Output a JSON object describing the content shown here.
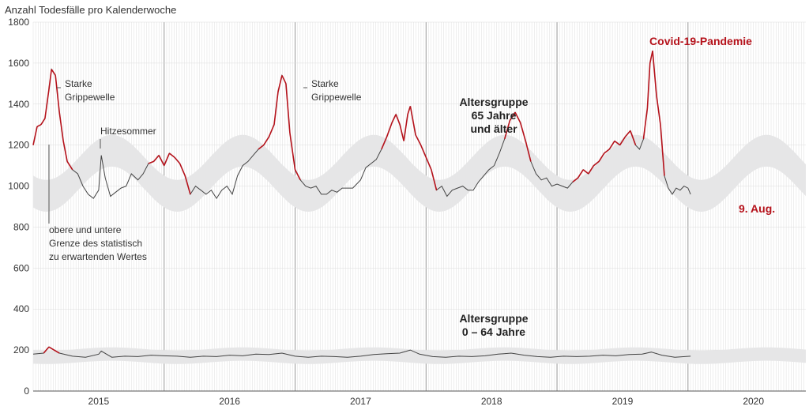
{
  "chart_data": {
    "type": "line",
    "title": "",
    "ylabel": "Anzahl Todesfälle pro Kalenderwoche",
    "xlabel": "",
    "ylim": [
      0,
      1800
    ],
    "yticks": [
      0,
      200,
      400,
      600,
      800,
      1000,
      1200,
      1400,
      1600,
      1800
    ],
    "xlim_year": [
      2014.5,
      2020.4
    ],
    "year_labels": [
      "2015",
      "2016",
      "2017",
      "2018",
      "2019",
      "2020"
    ],
    "grid": true,
    "colors": {
      "normal": "#444444",
      "excess": "#b5121b",
      "band": "#e6e6e7",
      "grid": "#e4e4e4",
      "season_line": "#999999"
    },
    "series": [
      {
        "name": "Altersgruppe 65 Jahre und älter",
        "points": [
          [
            2014.5,
            1200
          ],
          [
            2014.53,
            1290
          ],
          [
            2014.56,
            1300
          ],
          [
            2014.59,
            1330
          ],
          [
            2014.62,
            1470
          ],
          [
            2014.64,
            1570
          ],
          [
            2014.67,
            1540
          ],
          [
            2014.7,
            1360
          ],
          [
            2014.73,
            1220
          ],
          [
            2014.76,
            1120
          ],
          [
            2014.8,
            1080
          ],
          [
            2014.84,
            1060
          ],
          [
            2014.88,
            1000
          ],
          [
            2014.92,
            960
          ],
          [
            2014.96,
            940
          ],
          [
            2015.0,
            980
          ],
          [
            2015.02,
            1150
          ],
          [
            2015.05,
            1040
          ],
          [
            2015.09,
            950
          ],
          [
            2015.13,
            970
          ],
          [
            2015.17,
            990
          ],
          [
            2015.21,
            1000
          ],
          [
            2015.25,
            1060
          ],
          [
            2015.3,
            1030
          ],
          [
            2015.34,
            1060
          ],
          [
            2015.38,
            1110
          ],
          [
            2015.42,
            1120
          ],
          [
            2015.46,
            1150
          ],
          [
            2015.5,
            1100
          ],
          [
            2015.54,
            1160
          ],
          [
            2015.58,
            1140
          ],
          [
            2015.62,
            1110
          ],
          [
            2015.66,
            1050
          ],
          [
            2015.7,
            960
          ],
          [
            2015.74,
            1000
          ],
          [
            2015.78,
            980
          ],
          [
            2015.82,
            960
          ],
          [
            2015.86,
            980
          ],
          [
            2015.9,
            940
          ],
          [
            2015.94,
            980
          ],
          [
            2015.98,
            1000
          ],
          [
            2016.02,
            960
          ],
          [
            2016.06,
            1050
          ],
          [
            2016.1,
            1100
          ],
          [
            2016.14,
            1120
          ],
          [
            2016.18,
            1150
          ],
          [
            2016.22,
            1180
          ],
          [
            2016.26,
            1200
          ],
          [
            2016.3,
            1240
          ],
          [
            2016.34,
            1300
          ],
          [
            2016.37,
            1460
          ],
          [
            2016.4,
            1540
          ],
          [
            2016.43,
            1500
          ],
          [
            2016.46,
            1260
          ],
          [
            2016.5,
            1080
          ],
          [
            2016.54,
            1030
          ],
          [
            2016.58,
            1000
          ],
          [
            2016.62,
            990
          ],
          [
            2016.66,
            1000
          ],
          [
            2016.7,
            960
          ],
          [
            2016.74,
            960
          ],
          [
            2016.78,
            980
          ],
          [
            2016.82,
            970
          ],
          [
            2016.86,
            990
          ],
          [
            2016.9,
            990
          ],
          [
            2016.94,
            990
          ],
          [
            2017.0,
            1030
          ],
          [
            2017.04,
            1090
          ],
          [
            2017.08,
            1110
          ],
          [
            2017.12,
            1130
          ],
          [
            2017.16,
            1180
          ],
          [
            2017.2,
            1240
          ],
          [
            2017.24,
            1310
          ],
          [
            2017.27,
            1350
          ],
          [
            2017.3,
            1300
          ],
          [
            2017.33,
            1220
          ],
          [
            2017.36,
            1350
          ],
          [
            2017.38,
            1390
          ],
          [
            2017.42,
            1250
          ],
          [
            2017.46,
            1200
          ],
          [
            2017.5,
            1140
          ],
          [
            2017.54,
            1080
          ],
          [
            2017.58,
            980
          ],
          [
            2017.62,
            1000
          ],
          [
            2017.66,
            950
          ],
          [
            2017.7,
            980
          ],
          [
            2017.74,
            990
          ],
          [
            2017.78,
            1000
          ],
          [
            2017.82,
            980
          ],
          [
            2017.86,
            980
          ],
          [
            2017.9,
            1020
          ],
          [
            2017.94,
            1050
          ],
          [
            2017.98,
            1080
          ],
          [
            2018.02,
            1100
          ],
          [
            2018.06,
            1160
          ],
          [
            2018.1,
            1230
          ],
          [
            2018.14,
            1320
          ],
          [
            2018.18,
            1360
          ],
          [
            2018.22,
            1310
          ],
          [
            2018.26,
            1220
          ],
          [
            2018.3,
            1120
          ],
          [
            2018.34,
            1060
          ],
          [
            2018.38,
            1030
          ],
          [
            2018.42,
            1040
          ],
          [
            2018.46,
            1000
          ],
          [
            2018.5,
            1010
          ],
          [
            2018.54,
            1000
          ],
          [
            2018.58,
            990
          ],
          [
            2018.62,
            1020
          ],
          [
            2018.66,
            1040
          ],
          [
            2018.7,
            1080
          ],
          [
            2018.74,
            1060
          ],
          [
            2018.78,
            1100
          ],
          [
            2018.82,
            1120
          ],
          [
            2018.86,
            1160
          ],
          [
            2018.9,
            1180
          ],
          [
            2018.94,
            1220
          ],
          [
            2018.98,
            1200
          ],
          [
            2019.02,
            1240
          ],
          [
            2019.06,
            1270
          ],
          [
            2019.1,
            1200
          ],
          [
            2019.13,
            1180
          ],
          [
            2019.16,
            1230
          ],
          [
            2019.19,
            1380
          ],
          [
            2019.21,
            1600
          ],
          [
            2019.23,
            1660
          ],
          [
            2019.26,
            1440
          ],
          [
            2019.29,
            1300
          ],
          [
            2019.32,
            1050
          ],
          [
            2019.35,
            990
          ],
          [
            2019.38,
            960
          ],
          [
            2019.41,
            990
          ],
          [
            2019.44,
            980
          ],
          [
            2019.47,
            1000
          ],
          [
            2019.5,
            990
          ],
          [
            2019.52,
            960
          ]
        ]
      },
      {
        "name": "Altersgruppe 0 – 64 Jahre",
        "points": [
          [
            2014.5,
            180
          ],
          [
            2014.58,
            185
          ],
          [
            2014.62,
            215
          ],
          [
            2014.7,
            185
          ],
          [
            2014.8,
            170
          ],
          [
            2014.9,
            165
          ],
          [
            2015.0,
            180
          ],
          [
            2015.02,
            195
          ],
          [
            2015.1,
            165
          ],
          [
            2015.2,
            170
          ],
          [
            2015.3,
            168
          ],
          [
            2015.4,
            175
          ],
          [
            2015.5,
            172
          ],
          [
            2015.6,
            170
          ],
          [
            2015.7,
            165
          ],
          [
            2015.8,
            170
          ],
          [
            2015.9,
            168
          ],
          [
            2016.0,
            175
          ],
          [
            2016.1,
            172
          ],
          [
            2016.2,
            180
          ],
          [
            2016.3,
            178
          ],
          [
            2016.4,
            185
          ],
          [
            2016.5,
            170
          ],
          [
            2016.6,
            165
          ],
          [
            2016.7,
            170
          ],
          [
            2016.8,
            168
          ],
          [
            2016.9,
            165
          ],
          [
            2017.0,
            170
          ],
          [
            2017.1,
            178
          ],
          [
            2017.2,
            182
          ],
          [
            2017.3,
            185
          ],
          [
            2017.38,
            200
          ],
          [
            2017.45,
            180
          ],
          [
            2017.55,
            168
          ],
          [
            2017.65,
            165
          ],
          [
            2017.75,
            170
          ],
          [
            2017.85,
            168
          ],
          [
            2017.95,
            172
          ],
          [
            2018.05,
            180
          ],
          [
            2018.15,
            185
          ],
          [
            2018.25,
            175
          ],
          [
            2018.35,
            168
          ],
          [
            2018.45,
            165
          ],
          [
            2018.55,
            170
          ],
          [
            2018.65,
            168
          ],
          [
            2018.75,
            170
          ],
          [
            2018.85,
            175
          ],
          [
            2018.95,
            172
          ],
          [
            2019.05,
            178
          ],
          [
            2019.15,
            180
          ],
          [
            2019.22,
            190
          ],
          [
            2019.3,
            175
          ],
          [
            2019.4,
            165
          ],
          [
            2019.52,
            170
          ]
        ]
      }
    ],
    "annotations": {
      "ylabel": "Anzahl Todesfälle pro Kalenderwoche",
      "starke_1": "Starke",
      "grippewelle_1": "Grippewelle",
      "starke_2": "Starke",
      "grippewelle_2": "Grippewelle",
      "hitzesommer": "Hitzesommer",
      "band_line1": "obere und untere",
      "band_line2": "Grenze des statistisch",
      "band_line3": "zu erwartenden Wertes",
      "older_line1": "Altersgruppe",
      "older_line2": "65 Jahre",
      "older_line3": "und älter",
      "younger_line1": "Altersgruppe",
      "younger_line2": "0 – 64 Jahre",
      "covid": "Covid-19-Pandemie",
      "last_date": "9. Aug."
    }
  }
}
